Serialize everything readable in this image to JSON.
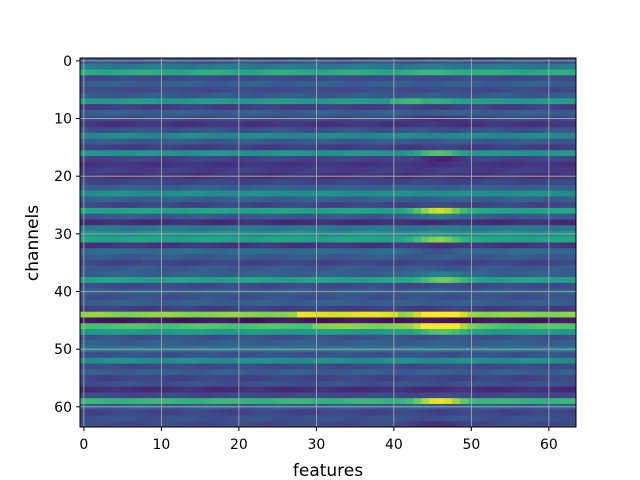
{
  "chart_data": {
    "type": "heatmap",
    "title": "",
    "xlabel": "features",
    "ylabel": "channels",
    "n_features": 64,
    "n_channels": 64,
    "xlim": [
      -0.5,
      63.5
    ],
    "ylim": [
      63.5,
      -0.5
    ],
    "x_ticks": [
      0,
      10,
      20,
      30,
      40,
      50,
      60
    ],
    "y_ticks": [
      0,
      10,
      20,
      30,
      40,
      50,
      60
    ],
    "colormap": "viridis",
    "value_range": [
      0,
      1
    ],
    "grid": true,
    "grid_color": "#b0b0b0",
    "row_base": [
      0.25,
      0.4,
      0.62,
      0.22,
      0.3,
      0.22,
      0.28,
      0.55,
      0.18,
      0.3,
      0.22,
      0.15,
      0.25,
      0.47,
      0.28,
      0.18,
      0.52,
      0.2,
      0.15,
      0.18,
      0.15,
      0.2,
      0.3,
      0.5,
      0.3,
      0.2,
      0.58,
      0.28,
      0.12,
      0.4,
      0.5,
      0.58,
      0.15,
      0.35,
      0.28,
      0.2,
      0.28,
      0.3,
      0.58,
      0.22,
      0.3,
      0.25,
      0.3,
      0.18,
      0.82,
      0.05,
      0.72,
      0.55,
      0.25,
      0.3,
      0.38,
      0.25,
      0.5,
      0.22,
      0.3,
      0.2,
      0.25,
      0.12,
      0.22,
      0.66,
      0.28,
      0.2,
      0.25,
      0.22
    ],
    "hotspot": {
      "feature_center": 46,
      "feature_spread": 3,
      "boost_by_row": {
        "2": 0.05,
        "7": 0.1,
        "10": -0.1,
        "16": 0.2,
        "17": -0.1,
        "26": 0.35,
        "27": 0.15,
        "31": 0.25,
        "33": -0.1,
        "37": 0.15,
        "38": 0.2,
        "44": 0.3,
        "46": 0.45,
        "47": 0.2,
        "59": 0.3,
        "63": -0.1
      }
    },
    "ramp_segments": [
      {
        "row": 7,
        "from_feature": 40,
        "to_feature": 43,
        "value": 0.66
      },
      {
        "row": 44,
        "from_feature": 28,
        "to_feature": 40,
        "value": 0.95
      },
      {
        "row": 46,
        "from_feature": 30,
        "to_feature": 44,
        "value": 0.82
      }
    ]
  }
}
